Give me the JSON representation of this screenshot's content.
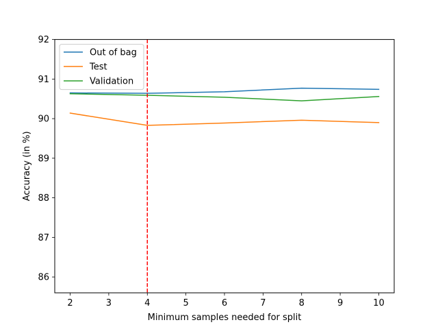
{
  "chart_data": {
    "type": "line",
    "title": "",
    "xlabel": "Minimum samples needed for split",
    "ylabel": "Accuracy (in %)",
    "x": [
      2,
      4,
      6,
      8,
      10
    ],
    "xlim": [
      1.6,
      10.4
    ],
    "ylim": [
      85.6,
      92.0
    ],
    "xticks": [
      "2",
      "3",
      "4",
      "5",
      "6",
      "7",
      "8",
      "9",
      "10"
    ],
    "yticks": [
      "86",
      "87",
      "88",
      "89",
      "90",
      "91",
      "92"
    ],
    "grid": false,
    "legend_position": "upper-left",
    "series": [
      {
        "name": "Out of bag",
        "color": "#1f77b4",
        "values": [
          90.65,
          90.64,
          90.68,
          90.77,
          90.74
        ]
      },
      {
        "name": "Test",
        "color": "#ff7f0e",
        "values": [
          90.14,
          89.83,
          89.89,
          89.96,
          89.9
        ]
      },
      {
        "name": "Validation",
        "color": "#2ca02c",
        "values": [
          90.63,
          90.59,
          90.54,
          90.45,
          90.56
        ]
      }
    ],
    "reference_line": {
      "orientation": "vertical",
      "x": 4,
      "color": "#ff0000",
      "style": "dashed"
    }
  }
}
